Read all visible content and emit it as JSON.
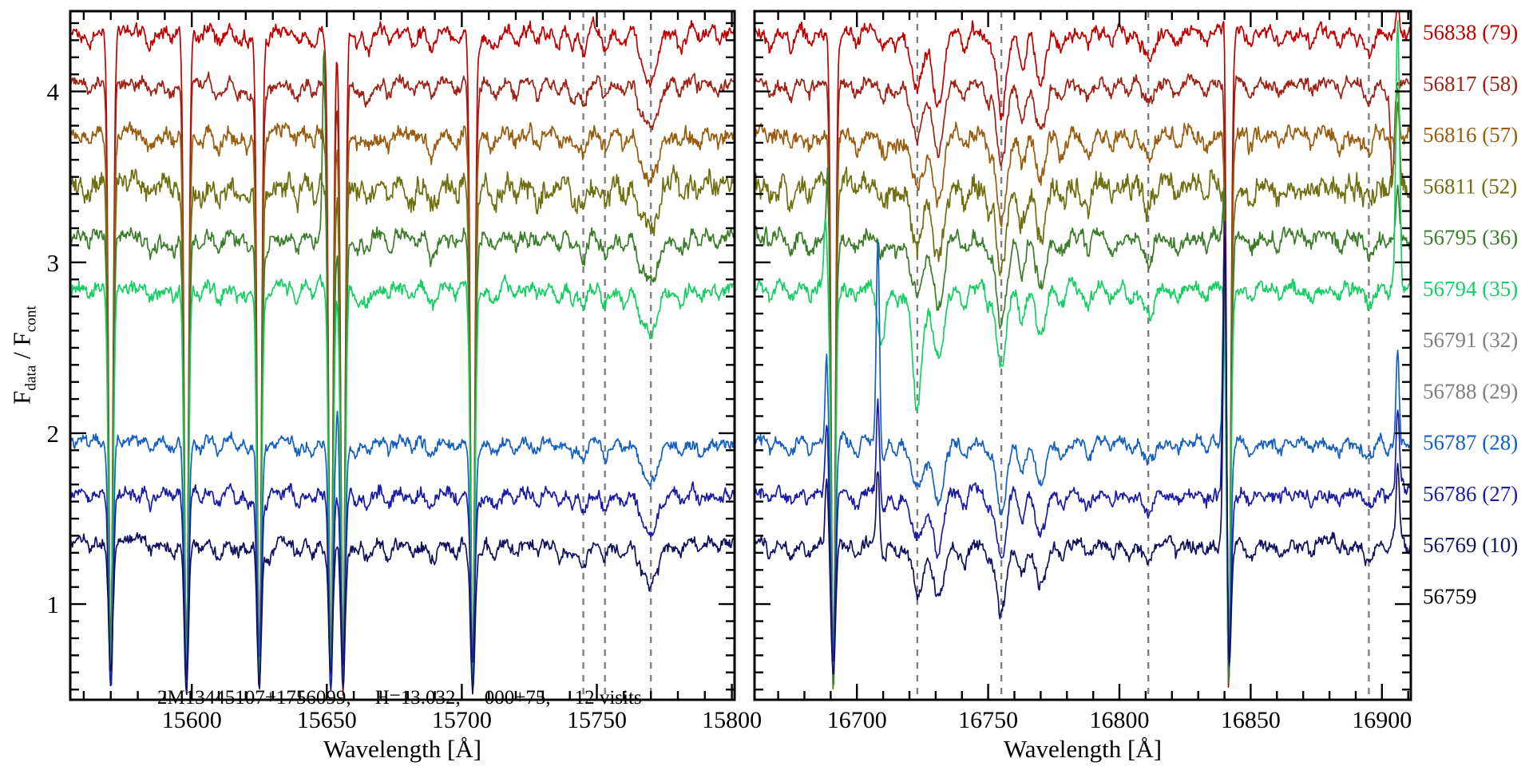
{
  "chart_data": {
    "type": "line",
    "description": "Stacked stellar visit spectra, flux vs wavelength, two wavelength windows",
    "ylim": [
      0.44,
      4.47
    ],
    "yticks": [
      1,
      2,
      3,
      4
    ],
    "y_minor_step": 0.1,
    "ylabel_parts": {
      "f1": "F",
      "sub1": "data",
      "mid": " / F",
      "sub2": "cont"
    },
    "legend_position": "right-margin",
    "style": {
      "background": "#ffffff",
      "axis_color": "#000000",
      "dashed_color": "#808080",
      "tick_label_color": "#000000"
    },
    "annotation": {
      "parts": [
        "2M13445107+1756099,",
        "H=13.032,",
        "000+75,",
        "12 visits"
      ]
    },
    "panels": [
      {
        "xlim": [
          15555,
          15801
        ],
        "xticks": [
          15600,
          15650,
          15700,
          15750,
          15800
        ],
        "x_minor_step": 10,
        "xlabel": "Wavelength [Å]",
        "dashed_lines": [
          15745,
          15753,
          15770
        ],
        "sky_deep_lines": [
          15570,
          15598,
          15625,
          15651.5,
          15656,
          15704
        ],
        "stellar_lines": [
          [
            15562,
            0.06,
            1
          ],
          [
            15585,
            0.07,
            1.2
          ],
          [
            15593,
            0.06,
            1
          ],
          [
            15603,
            0.06,
            1
          ],
          [
            15610,
            0.08,
            1.3
          ],
          [
            15617,
            0.06,
            1
          ],
          [
            15621,
            0.07,
            1.2
          ],
          [
            15628,
            0.06,
            1
          ],
          [
            15639,
            0.06,
            1
          ],
          [
            15645,
            0.07,
            1
          ],
          [
            15661,
            0.07,
            1
          ],
          [
            15665,
            0.09,
            1.4
          ],
          [
            15673,
            0.07,
            1
          ],
          [
            15682,
            0.06,
            1
          ],
          [
            15689,
            0.11,
            1.5
          ],
          [
            15698,
            0.07,
            1
          ],
          [
            15706,
            0.06,
            1
          ],
          [
            15712,
            0.09,
            1.4
          ],
          [
            15720,
            0.07,
            1
          ],
          [
            15728,
            0.06,
            1
          ],
          [
            15736,
            0.07,
            1
          ],
          [
            15741,
            0.08,
            1
          ],
          [
            15745,
            0.13,
            1.2
          ],
          [
            15753,
            0.11,
            1.2
          ],
          [
            15760,
            0.08,
            1.2
          ],
          [
            15766,
            0.08,
            1.2
          ],
          [
            15770,
            0.28,
            2.6
          ],
          [
            15781,
            0.08,
            1.2
          ],
          [
            15788,
            0.06,
            1
          ],
          [
            15795,
            0.06,
            1
          ]
        ]
      },
      {
        "xlim": [
          16661,
          16911
        ],
        "xticks": [
          16700,
          16750,
          16800,
          16850,
          16900
        ],
        "x_minor_step": 10,
        "xlabel": "Wavelength [Å]",
        "dashed_lines": [
          16723,
          16755,
          16811,
          16895
        ],
        "sky_deep_lines": [
          16691,
          16841.6
        ],
        "stellar_lines": [
          [
            16667,
            0.07,
            1
          ],
          [
            16675,
            0.08,
            1.2
          ],
          [
            16682,
            0.07,
            1
          ],
          [
            16700,
            0.08,
            1.2
          ],
          [
            16710,
            0.1,
            1.3
          ],
          [
            16715,
            0.08,
            1.2
          ],
          [
            16723,
            0.32,
            2.4
          ],
          [
            16731,
            0.4,
            2.0
          ],
          [
            16741,
            0.1,
            1.2
          ],
          [
            16750,
            0.1,
            1
          ],
          [
            16755,
            0.48,
            1.9
          ],
          [
            16763,
            0.22,
            1.3
          ],
          [
            16770,
            0.3,
            1.9
          ],
          [
            16778,
            0.1,
            1.2
          ],
          [
            16788,
            0.08,
            1.2
          ],
          [
            16797,
            0.07,
            1
          ],
          [
            16804,
            0.06,
            1
          ],
          [
            16811,
            0.14,
            2.0
          ],
          [
            16822,
            0.07,
            1.2
          ],
          [
            16833,
            0.07,
            1
          ],
          [
            16843,
            0.06,
            1
          ],
          [
            16850,
            0.08,
            1.2
          ],
          [
            16861,
            0.06,
            1
          ],
          [
            16873,
            0.06,
            1
          ],
          [
            16884,
            0.06,
            1
          ],
          [
            16895,
            0.1,
            1.8
          ],
          [
            16902,
            0.06,
            1
          ]
        ]
      }
    ],
    "series": [
      {
        "label": "56838 (79)",
        "color": "#c00000",
        "offset": 4.35,
        "plotted": true,
        "noise_amp": 0.045,
        "line_mult": 1.0,
        "spikes": [
          [],
          [
            [
              16840.2,
              0.45,
              0.55
            ],
            [
              16906,
              0.2,
              0.6
            ]
          ]
        ],
        "dips": [
          [],
          []
        ]
      },
      {
        "label": "56817 (58)",
        "color": "#9e2215",
        "offset": 4.05,
        "plotted": true,
        "noise_amp": 0.042,
        "line_mult": 1.0,
        "spikes": [
          [],
          []
        ],
        "dips": [
          [],
          [
            [
              16904,
              0.55,
              0.7
            ]
          ]
        ]
      },
      {
        "label": "56816 (57)",
        "color": "#9a5d10",
        "offset": 3.75,
        "plotted": true,
        "noise_amp": 0.055,
        "line_mult": 1.0,
        "spikes": [
          [],
          [
            [
              16906,
              0.3,
              0.6
            ]
          ]
        ],
        "dips": [
          [],
          []
        ]
      },
      {
        "label": "56811 (52)",
        "color": "#6f7012",
        "offset": 3.45,
        "plotted": true,
        "noise_amp": 0.075,
        "line_mult": 1.0,
        "spikes": [
          [],
          [
            [
              16906,
              0.45,
              0.6
            ]
          ]
        ],
        "dips": [
          [],
          []
        ]
      },
      {
        "label": "56795 (36)",
        "color": "#3c7d2c",
        "offset": 3.15,
        "plotted": true,
        "noise_amp": 0.05,
        "line_mult": 1.0,
        "spikes": [
          [
            [
              15649,
              1.1,
              0.55
            ]
          ],
          [
            [
              16689,
              0.5,
              0.55
            ],
            [
              16840.2,
              0.6,
              0.55
            ],
            [
              16906,
              0.3,
              0.6
            ]
          ]
        ],
        "dips": [
          [],
          []
        ]
      },
      {
        "label": "56794 (35)",
        "color": "#15cf63",
        "offset": 2.85,
        "plotted": true,
        "noise_amp": 0.045,
        "line_mult": 1.0,
        "spikes": [
          [],
          [
            [
              16688,
              0.45,
              0.55
            ],
            [
              16906,
              1.55,
              0.7
            ]
          ]
        ],
        "dips": [
          [],
          [
            [
              16723,
              0.4,
              1.4
            ],
            [
              16709,
              0.25,
              1.4
            ]
          ]
        ]
      },
      {
        "label": "56791 (32)",
        "color": "#7f7f7f",
        "offset": 2.55,
        "plotted": false
      },
      {
        "label": "56788 (29)",
        "color": "#7f7f7f",
        "offset": 2.25,
        "plotted": false
      },
      {
        "label": "56787 (28)",
        "color": "#1560c0",
        "offset": 1.95,
        "plotted": true,
        "noise_amp": 0.038,
        "line_mult": 0.85,
        "spikes": [
          [
            [
              15654,
              0.25,
              0.5
            ]
          ],
          [
            [
              16688.5,
              0.5,
              0.55
            ],
            [
              16708,
              1.2,
              0.6
            ],
            [
              16840.2,
              1.5,
              0.65
            ],
            [
              16906,
              0.55,
              0.6
            ]
          ]
        ],
        "dips": [
          [],
          []
        ]
      },
      {
        "label": "56786 (27)",
        "color": "#1a1ca8",
        "offset": 1.65,
        "plotted": true,
        "noise_amp": 0.042,
        "line_mult": 0.85,
        "spikes": [
          [],
          [
            [
              16688.5,
              0.45,
              0.55
            ],
            [
              16708,
              0.55,
              0.6
            ],
            [
              16840.2,
              1.8,
              0.65
            ],
            [
              16906,
              0.5,
              0.6
            ]
          ]
        ],
        "dips": [
          [],
          []
        ]
      },
      {
        "label": "56769 (10)",
        "color": "#121260",
        "offset": 1.35,
        "plotted": true,
        "noise_amp": 0.042,
        "line_mult": 0.85,
        "spikes": [
          [],
          [
            [
              16688.5,
              0.4,
              0.55
            ],
            [
              16708,
              0.45,
              0.6
            ],
            [
              16840.2,
              2.0,
              0.65
            ],
            [
              16906,
              0.45,
              0.6
            ]
          ]
        ],
        "dips": [
          [],
          []
        ]
      },
      {
        "label": "56759",
        "color": "#000000",
        "offset": 1.05,
        "plotted": false
      }
    ]
  }
}
